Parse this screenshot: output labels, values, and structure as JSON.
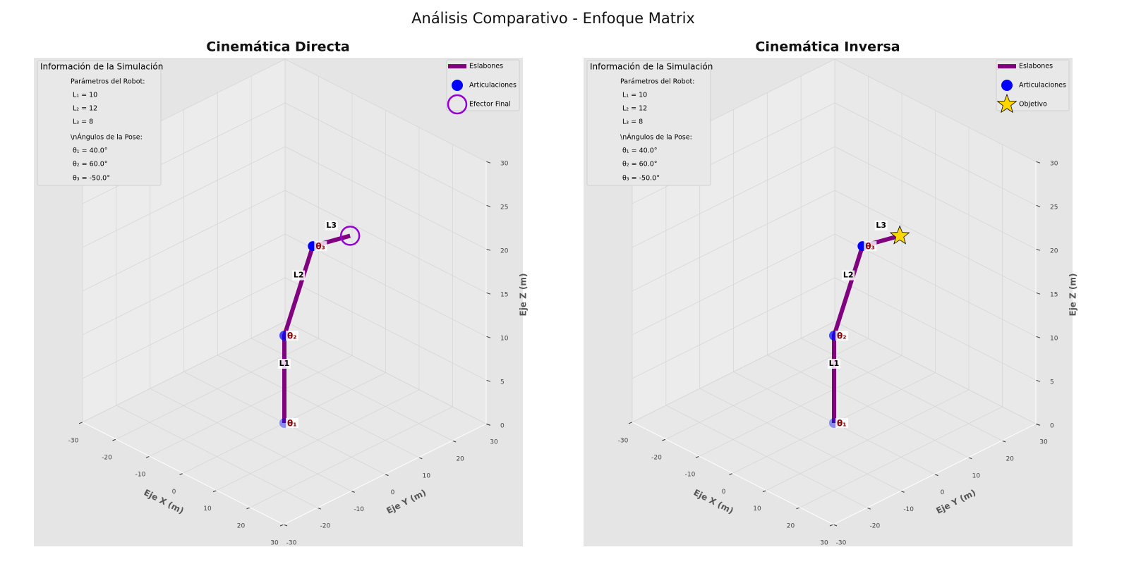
{
  "title": "Análisis Comparativo - Enfoque Matrix",
  "chart_data": [
    {
      "type": "robot3d",
      "title": "Cinemática Directa",
      "xlabel": "Eje X (m)",
      "ylabel": "Eje Y (m)",
      "zlabel": "Eje Z (m)",
      "xlim": [
        -30,
        30
      ],
      "ylim": [
        -30,
        30
      ],
      "zlim": [
        0,
        30
      ],
      "xticks": [
        -30,
        -20,
        -10,
        0,
        10,
        20,
        30
      ],
      "yticks": [
        -30,
        -20,
        -10,
        0,
        10,
        20,
        30
      ],
      "zticks": [
        0,
        5,
        10,
        15,
        20,
        25,
        30
      ],
      "grid": true,
      "links": {
        "name": "Eslabones",
        "color": "#800080",
        "labels": [
          "L1",
          "L2",
          "L3"
        ],
        "x": [
          0,
          0,
          4.6,
          10.63
        ],
        "y": [
          0,
          0,
          3.86,
          8.92
        ],
        "z": [
          0,
          10,
          20.39,
          21.78
        ]
      },
      "joints": {
        "name": "Articulaciones",
        "color": "#0000ff",
        "labels": [
          "θ₁",
          "θ₂",
          "θ₃"
        ],
        "x": [
          0,
          0,
          4.6
        ],
        "y": [
          0,
          0,
          3.86
        ],
        "z": [
          0,
          10,
          20.39
        ]
      },
      "end": {
        "name": "Efector Final",
        "color": "#9400d3",
        "marker": "open-circle",
        "x": 10.63,
        "y": 8.92,
        "z": 21.78
      },
      "info": {
        "title": "Información de la Simulación",
        "lines": [
          "Parámetros del Robot:",
          "L₁ = 10",
          "L₂ = 12",
          "L₃ = 8",
          "\\nÁngulos de la Pose:",
          "θ₁ = 40.0°",
          "θ₂ = 60.0°",
          "θ₃ = -50.0°"
        ]
      }
    },
    {
      "type": "robot3d",
      "title": "Cinemática Inversa",
      "xlabel": "Eje X (m)",
      "ylabel": "Eje Y (m)",
      "zlabel": "Eje Z (m)",
      "xlim": [
        -30,
        30
      ],
      "ylim": [
        -30,
        30
      ],
      "zlim": [
        0,
        30
      ],
      "xticks": [
        -30,
        -20,
        -10,
        0,
        10,
        20,
        30
      ],
      "yticks": [
        -30,
        -20,
        -10,
        0,
        10,
        20,
        30
      ],
      "zticks": [
        0,
        5,
        10,
        15,
        20,
        25,
        30
      ],
      "grid": true,
      "links": {
        "name": "Eslabones",
        "color": "#800080",
        "labels": [
          "L1",
          "L2",
          "L3"
        ],
        "x": [
          0,
          0,
          4.6,
          10.63
        ],
        "y": [
          0,
          0,
          3.86,
          8.92
        ],
        "z": [
          0,
          10,
          20.39,
          21.78
        ]
      },
      "joints": {
        "name": "Articulaciones",
        "color": "#0000ff",
        "labels": [
          "θ₁",
          "θ₂",
          "θ₃"
        ],
        "x": [
          0,
          0,
          4.6
        ],
        "y": [
          0,
          0,
          3.86
        ],
        "z": [
          0,
          10,
          20.39
        ]
      },
      "end": {
        "name": "Objetivo",
        "color": "#ffd700",
        "marker": "star",
        "x": 10.63,
        "y": 8.92,
        "z": 21.78
      },
      "info": {
        "title": "Información de la Simulación",
        "lines": [
          "Parámetros del Robot:",
          "L₁ = 10",
          "L₂ = 12",
          "L₃ = 8",
          "\\nÁngulos de la Pose:",
          "θ₁ = 40.0°",
          "θ₂ = 60.0°",
          "θ₃ = -50.0°"
        ]
      }
    }
  ]
}
